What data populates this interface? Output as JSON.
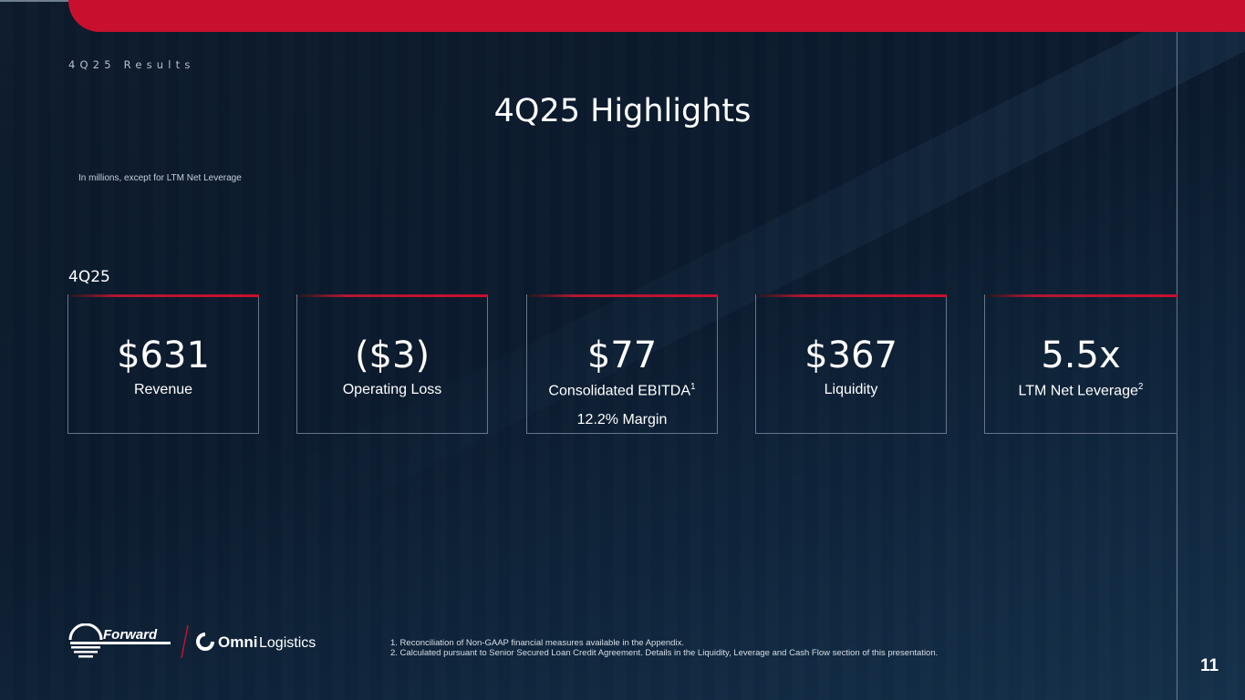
{
  "header": {
    "section": "4Q25 Results",
    "title": "4Q25 Highlights",
    "note": "In millions, except for LTM Net Leverage"
  },
  "period_label": "4Q25",
  "cards": [
    {
      "value": "$631",
      "label": "Revenue"
    },
    {
      "value": "($3)",
      "label": "Operating Loss"
    },
    {
      "value": "$77",
      "label": "Consolidated EBITDA",
      "sup": "1",
      "sub": "12.2% Margin"
    },
    {
      "value": "$367",
      "label": "Liquidity"
    },
    {
      "value": "5.5x",
      "label": "LTM Net Leverage",
      "sup": "2"
    }
  ],
  "logos": {
    "forward": "Forward",
    "omni_bold": "Omni",
    "omni_light": "Logistics"
  },
  "footnotes": [
    "1.  Reconciliation of Non-GAAP financial measures available in the Appendix.",
    "2.  Calculated pursuant to Senior Secured Loan Credit Agreement. Details in the Liquidity, Leverage and Cash Flow section of this presentation."
  ],
  "page_number": "11",
  "colors": {
    "brand_red": "#c8102e",
    "background": "#0b1a2d"
  }
}
